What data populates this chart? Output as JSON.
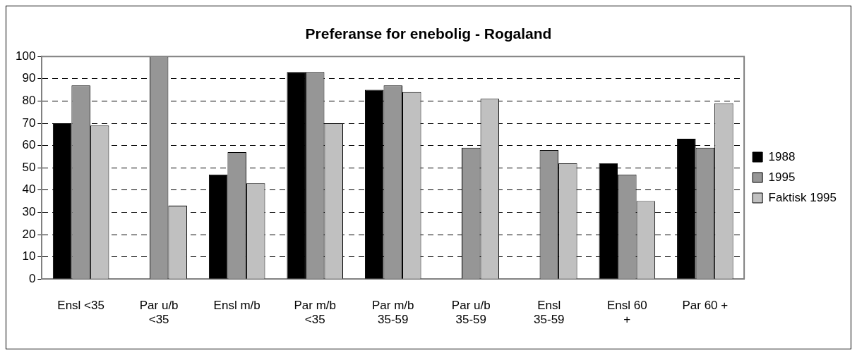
{
  "chart_data": {
    "type": "bar",
    "title": "Preferanse for enebolig - Rogaland",
    "categories": [
      "Ensl <35",
      "Par u/b <35",
      "Ensl m/b",
      "Par m/b <35",
      "Par m/b 35-59",
      "Par u/b 35-59",
      "Ensl 35-59",
      "Ensl 60 +",
      "Par 60 +"
    ],
    "series": [
      {
        "name": "1988",
        "color": "#000000",
        "values": [
          70,
          null,
          47,
          93,
          85,
          null,
          null,
          52,
          63
        ]
      },
      {
        "name": "1995",
        "color": "#969696",
        "values": [
          87,
          100,
          57,
          93,
          87,
          59,
          58,
          47,
          59
        ]
      },
      {
        "name": "Faktisk 1995",
        "color": "#c0c0c0",
        "values": [
          69,
          33,
          43,
          70,
          84,
          81,
          52,
          35,
          79
        ]
      }
    ],
    "ylim": [
      0,
      100
    ],
    "yticks": [
      0,
      10,
      20,
      30,
      40,
      50,
      60,
      70,
      80,
      90,
      100
    ],
    "grid": "y",
    "legend": "right"
  }
}
